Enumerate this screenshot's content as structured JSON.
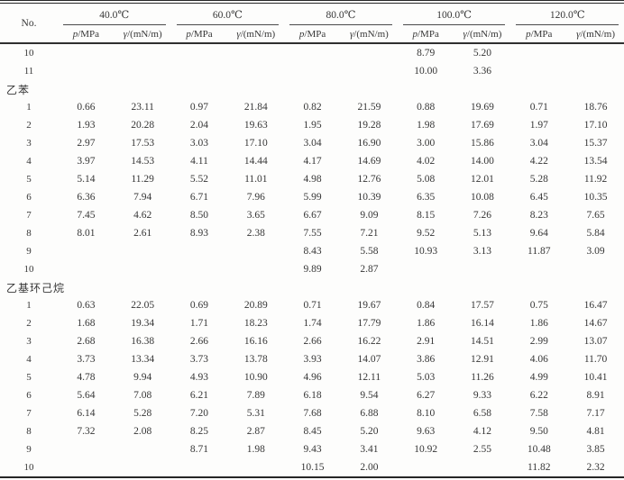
{
  "table": {
    "header": {
      "no_label": "No.",
      "temperatures": [
        "40.0℃",
        "60.0℃",
        "80.0℃",
        "100.0℃",
        "120.0℃"
      ],
      "pressure_symbol": "p",
      "pressure_unit": "/MPa",
      "tension_symbol": "γ",
      "tension_unit": "/(mN/m)"
    },
    "rows": [
      {
        "no": "10",
        "cells": [
          "",
          "",
          "",
          "",
          "",
          "",
          "8.79",
          "5.20",
          "",
          ""
        ]
      },
      {
        "no": "11",
        "cells": [
          "",
          "",
          "",
          "",
          "",
          "",
          "10.00",
          "3.36",
          "",
          ""
        ]
      },
      {
        "section": "乙苯"
      },
      {
        "no": "1",
        "cells": [
          "0.66",
          "23.11",
          "0.97",
          "21.84",
          "0.82",
          "21.59",
          "0.88",
          "19.69",
          "0.71",
          "18.76"
        ]
      },
      {
        "no": "2",
        "cells": [
          "1.93",
          "20.28",
          "2.04",
          "19.63",
          "1.95",
          "19.28",
          "1.98",
          "17.69",
          "1.97",
          "17.10"
        ]
      },
      {
        "no": "3",
        "cells": [
          "2.97",
          "17.53",
          "3.03",
          "17.10",
          "3.04",
          "16.90",
          "3.00",
          "15.86",
          "3.04",
          "15.37"
        ]
      },
      {
        "no": "4",
        "cells": [
          "3.97",
          "14.53",
          "4.11",
          "14.44",
          "4.17",
          "14.69",
          "4.02",
          "14.00",
          "4.22",
          "13.54"
        ]
      },
      {
        "no": "5",
        "cells": [
          "5.14",
          "11.29",
          "5.52",
          "11.01",
          "4.98",
          "12.76",
          "5.08",
          "12.01",
          "5.28",
          "11.92"
        ]
      },
      {
        "no": "6",
        "cells": [
          "6.36",
          "7.94",
          "6.71",
          "7.96",
          "5.99",
          "10.39",
          "6.35",
          "10.08",
          "6.45",
          "10.35"
        ]
      },
      {
        "no": "7",
        "cells": [
          "7.45",
          "4.62",
          "8.50",
          "3.65",
          "6.67",
          "9.09",
          "8.15",
          "7.26",
          "8.23",
          "7.65"
        ]
      },
      {
        "no": "8",
        "cells": [
          "8.01",
          "2.61",
          "8.93",
          "2.38",
          "7.55",
          "7.21",
          "9.52",
          "5.13",
          "9.64",
          "5.84"
        ]
      },
      {
        "no": "9",
        "cells": [
          "",
          "",
          "",
          "",
          "8.43",
          "5.58",
          "10.93",
          "3.13",
          "11.87",
          "3.09"
        ]
      },
      {
        "no": "10",
        "cells": [
          "",
          "",
          "",
          "",
          "9.89",
          "2.87",
          "",
          "",
          "",
          ""
        ]
      },
      {
        "section": "乙基环己烷"
      },
      {
        "no": "1",
        "cells": [
          "0.63",
          "22.05",
          "0.69",
          "20.89",
          "0.71",
          "19.67",
          "0.84",
          "17.57",
          "0.75",
          "16.47"
        ]
      },
      {
        "no": "2",
        "cells": [
          "1.68",
          "19.34",
          "1.71",
          "18.23",
          "1.74",
          "17.79",
          "1.86",
          "16.14",
          "1.86",
          "14.67"
        ]
      },
      {
        "no": "3",
        "cells": [
          "2.68",
          "16.38",
          "2.66",
          "16.16",
          "2.66",
          "16.22",
          "2.91",
          "14.51",
          "2.99",
          "13.07"
        ]
      },
      {
        "no": "4",
        "cells": [
          "3.73",
          "13.34",
          "3.73",
          "13.78",
          "3.93",
          "14.07",
          "3.86",
          "12.91",
          "4.06",
          "11.70"
        ]
      },
      {
        "no": "5",
        "cells": [
          "4.78",
          "9.94",
          "4.93",
          "10.90",
          "4.96",
          "12.11",
          "5.03",
          "11.26",
          "4.99",
          "10.41"
        ]
      },
      {
        "no": "6",
        "cells": [
          "5.64",
          "7.08",
          "6.21",
          "7.89",
          "6.18",
          "9.54",
          "6.27",
          "9.33",
          "6.22",
          "8.91"
        ]
      },
      {
        "no": "7",
        "cells": [
          "6.14",
          "5.28",
          "7.20",
          "5.31",
          "7.68",
          "6.88",
          "8.10",
          "6.58",
          "7.58",
          "7.17"
        ]
      },
      {
        "no": "8",
        "cells": [
          "7.32",
          "2.08",
          "8.25",
          "2.87",
          "8.45",
          "5.20",
          "9.63",
          "4.12",
          "9.50",
          "4.81"
        ]
      },
      {
        "no": "9",
        "cells": [
          "",
          "",
          "8.71",
          "1.98",
          "9.43",
          "3.41",
          "10.92",
          "2.55",
          "10.48",
          "3.85"
        ]
      },
      {
        "no": "10",
        "cells": [
          "",
          "",
          "",
          "",
          "10.15",
          "2.00",
          "",
          "",
          "11.82",
          "2.32"
        ]
      }
    ]
  }
}
